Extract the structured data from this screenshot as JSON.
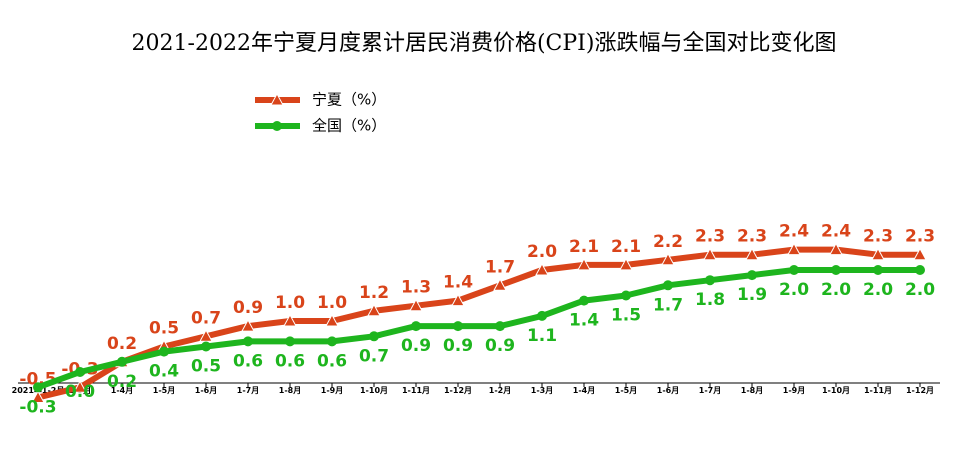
{
  "chart_data": {
    "type": "line",
    "title": "2021-2022年宁夏月度累计居民消费价格(CPI)涨跌幅与全国对比变化图",
    "categories": [
      "2021年1-2月",
      "1-3月",
      "1-4月",
      "1-5月",
      "1-6月",
      "1-7月",
      "1-8月",
      "1-9月",
      "1-10月",
      "1-11月",
      "1-12月",
      "1-2月",
      "1-3月",
      "1-4月",
      "1-5月",
      "1-6月",
      "1-7月",
      "1-8月",
      "1-9月",
      "1-10月",
      "1-11月",
      "1-12月"
    ],
    "series": [
      {
        "name": "宁夏（%）",
        "color": "#d9441a",
        "marker": "triangle",
        "values": [
          -0.5,
          -0.3,
          0.2,
          0.5,
          0.7,
          0.9,
          1.0,
          1.0,
          1.2,
          1.3,
          1.4,
          1.7,
          2.0,
          2.1,
          2.1,
          2.2,
          2.3,
          2.3,
          2.4,
          2.4,
          2.3,
          2.3
        ],
        "value_labels": [
          "-0.5",
          "-0.3",
          "0.2",
          "0.5",
          "0.7",
          "0.9",
          "1.0",
          "1.0",
          "1.2",
          "1.3",
          "1.4",
          "1.7",
          "2.0",
          "2.1",
          "2.1",
          "2.2",
          "2.3",
          "2.3",
          "2.4",
          "2.4",
          "2.3",
          "2.3"
        ]
      },
      {
        "name": "全国（%）",
        "color": "#1eb51e",
        "marker": "circle",
        "values": [
          -0.3,
          0.0,
          0.2,
          0.4,
          0.5,
          0.6,
          0.6,
          0.6,
          0.7,
          0.9,
          0.9,
          0.9,
          1.1,
          1.4,
          1.5,
          1.7,
          1.8,
          1.9,
          2.0,
          2.0,
          2.0,
          2.0
        ],
        "value_labels": [
          "-0.3",
          "0.0",
          "0.2",
          "0.4",
          "0.5",
          "0.6",
          "0.6",
          "0.6",
          "0.7",
          "0.9",
          "0.9",
          "0.9",
          "1.1",
          "1.4",
          "1.5",
          "1.7",
          "1.8",
          "1.9",
          "2.0",
          "2.0",
          "2.0",
          "2.0"
        ]
      }
    ]
  }
}
